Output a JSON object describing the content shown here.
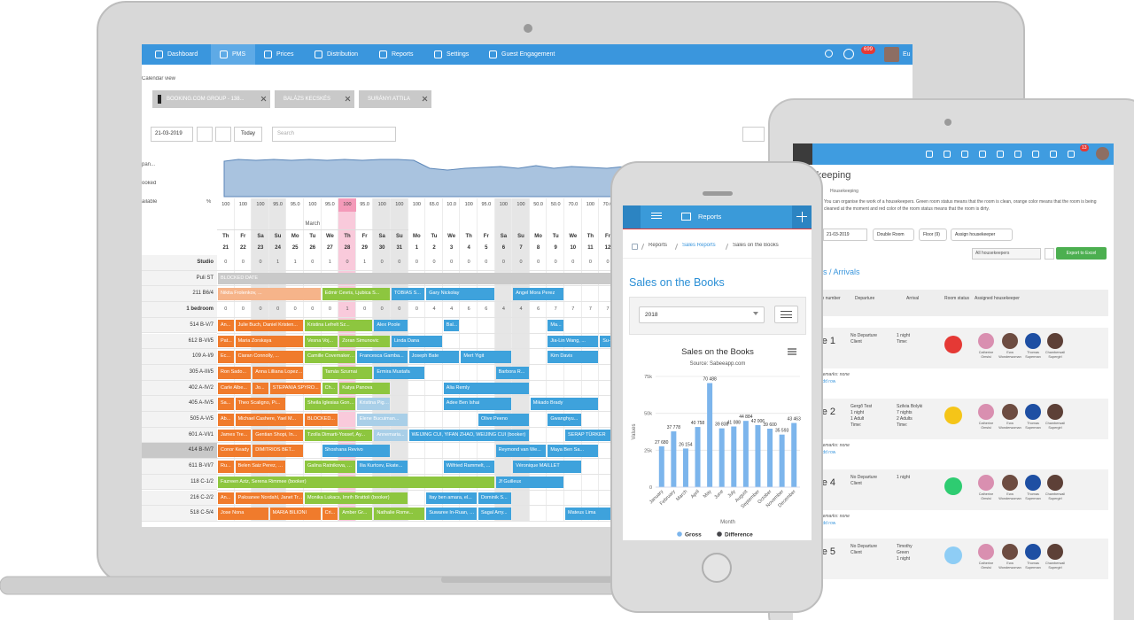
{
  "laptop": {
    "nav": [
      "Dashboard",
      "PMS",
      "Prices",
      "Distribution",
      "Reports",
      "Settings",
      "Guest Engagement"
    ],
    "badge": "699",
    "user": "Eu",
    "breadcrumb": "Calendar view",
    "tabs": [
      "BOOKING.COM GROUP - 138...",
      "BALÁZS KECSKÉS",
      "SURÁNYI ATTILA"
    ],
    "date": "21-03-2019",
    "today": "Today",
    "search": "Search",
    "side_labels": [
      "pan...",
      "ooked",
      "ailable"
    ],
    "percent": "%",
    "month": "March",
    "highlight_day": 28,
    "days": [
      {
        "d": "Th",
        "n": 21
      },
      {
        "d": "Fr",
        "n": 22
      },
      {
        "d": "Sa",
        "n": 23
      },
      {
        "d": "Su",
        "n": 24
      },
      {
        "d": "Mo",
        "n": 25
      },
      {
        "d": "Tu",
        "n": 26
      },
      {
        "d": "We",
        "n": 27
      },
      {
        "d": "Th",
        "n": 28
      },
      {
        "d": "Fr",
        "n": 29
      },
      {
        "d": "Sa",
        "n": 30
      },
      {
        "d": "Su",
        "n": 31
      },
      {
        "d": "Mo",
        "n": 1
      },
      {
        "d": "Tu",
        "n": 2
      },
      {
        "d": "We",
        "n": 3
      },
      {
        "d": "Th",
        "n": 4
      },
      {
        "d": "Fr",
        "n": 5
      },
      {
        "d": "Sa",
        "n": 6
      },
      {
        "d": "Su",
        "n": 7
      },
      {
        "d": "Mo",
        "n": 8
      },
      {
        "d": "Tu",
        "n": 9
      },
      {
        "d": "We",
        "n": 10
      },
      {
        "d": "Th",
        "n": 11
      },
      {
        "d": "Fr",
        "n": 12
      }
    ],
    "occupancy": [
      "100",
      "100",
      "100",
      "95.0",
      "95.0",
      "100",
      "95.0",
      "100",
      "95.0",
      "100",
      "100",
      "100",
      "65.0",
      "10.0",
      "100",
      "95.0",
      "100",
      "100",
      "50.0",
      "50.0",
      "70.0",
      "100",
      "70.0"
    ],
    "rows": [
      {
        "name": "Studio",
        "counts": [
          0,
          0,
          0,
          1,
          1,
          0,
          1,
          0,
          1,
          0,
          0,
          0,
          0,
          0,
          0,
          0,
          0,
          0,
          0,
          0,
          0,
          0,
          0
        ]
      },
      {
        "name": "Puli ST",
        "bookings": [
          {
            "label": "BLOCKED DATE",
            "from": 21,
            "to": 12,
            "color": "#c9c9c9"
          }
        ]
      },
      {
        "name": "211 B6/4",
        "bookings": [
          {
            "label": "Nikita Frolenkov, ...",
            "from": 21,
            "to": 26,
            "color": "#f6b48a"
          },
          {
            "label": "Edmir Cevris, Ljubica S...",
            "from": 27,
            "to": 30,
            "color": "#8dc63f"
          },
          {
            "label": "TOBIAS S...",
            "from": 31,
            "to": 1,
            "color": "#3ea2dc"
          },
          {
            "label": "Gary Nickolay",
            "from": 2,
            "to": 5,
            "color": "#3ea2dc"
          },
          {
            "label": "Angel Mora Perez",
            "from": 7,
            "to": 9,
            "color": "#3ea2dc"
          }
        ]
      },
      {
        "name": "1 bedroom",
        "counts": [
          0,
          0,
          0,
          0,
          0,
          0,
          0,
          1,
          0,
          0,
          0,
          0,
          4,
          4,
          6,
          6,
          4,
          4,
          6,
          7,
          7,
          7,
          7
        ]
      },
      {
        "name": "514 B-V/7",
        "bookings": [
          {
            "label": "An...",
            "from": 21,
            "to": 21,
            "color": "#f07b2c"
          },
          {
            "label": "Julie Buch, Daniel Kristen...",
            "from": 22,
            "to": 25,
            "color": "#f07b2c"
          },
          {
            "label": "Kristina Lefrelt Sz...",
            "from": 26,
            "to": 29,
            "color": "#8dc63f"
          },
          {
            "label": "Alex Poole",
            "from": 30,
            "to": 31,
            "color": "#3ea2dc"
          },
          {
            "label": "Bal...",
            "from": 3,
            "to": 3,
            "color": "#3ea2dc"
          },
          {
            "label": "Ma...",
            "from": 9,
            "to": 9,
            "color": "#3ea2dc"
          }
        ]
      },
      {
        "name": "612 B-VI/5",
        "bookings": [
          {
            "label": "Pat...",
            "from": 21,
            "to": 21,
            "color": "#f07b2c"
          },
          {
            "label": "Maria Zorskaya",
            "from": 22,
            "to": 25,
            "color": "#f07b2c"
          },
          {
            "label": "Vesna Voj...",
            "from": 26,
            "to": 27,
            "color": "#8dc63f"
          },
          {
            "label": "Zoran Simunovic",
            "from": 28,
            "to": 30,
            "color": "#8dc63f"
          },
          {
            "label": "Linda Dana",
            "from": 31,
            "to": 2,
            "color": "#3ea2dc"
          },
          {
            "label": "Jia-Lin Wang, ...",
            "from": 9,
            "to": 11,
            "color": "#3ea2dc"
          },
          {
            "label": "Su-Ying Lo",
            "from": 12,
            "to": 12,
            "color": "#3ea2dc"
          }
        ]
      },
      {
        "name": "109 A-I/9",
        "bookings": [
          {
            "label": "Ec...",
            "from": 21,
            "to": 21,
            "color": "#f07b2c"
          },
          {
            "label": "Ciaran Connolly, ...",
            "from": 22,
            "to": 25,
            "color": "#f07b2c"
          },
          {
            "label": "Camille Covemaker, Ka...",
            "from": 26,
            "to": 28,
            "color": "#8dc63f"
          },
          {
            "label": "Francesca Gamba...",
            "from": 29,
            "to": 31,
            "color": "#3ea2dc"
          },
          {
            "label": "Joseph Bate",
            "from": 1,
            "to": 3,
            "color": "#3ea2dc"
          },
          {
            "label": "Mert Yigit",
            "from": 4,
            "to": 6,
            "color": "#3ea2dc"
          },
          {
            "label": "Kim Davis",
            "from": 9,
            "to": 11,
            "color": "#3ea2dc"
          }
        ]
      },
      {
        "name": "305 A-III/5",
        "bookings": [
          {
            "label": "Ron Sado...",
            "from": 21,
            "to": 22,
            "color": "#f07b2c"
          },
          {
            "label": "Anna Lilliana Lopez, Ikes...",
            "from": 23,
            "to": 25,
            "color": "#f07b2c"
          },
          {
            "label": "Tamás Szurnai",
            "from": 27,
            "to": 29,
            "color": "#8dc63f"
          },
          {
            "label": "Ermira Mustafa",
            "from": 30,
            "to": 1,
            "color": "#3ea2dc"
          },
          {
            "label": "Barbora R...",
            "from": 6,
            "to": 7,
            "color": "#3ea2dc"
          }
        ]
      },
      {
        "name": "402 A-IV/2",
        "bookings": [
          {
            "label": "Carle Albe...",
            "from": 21,
            "to": 22,
            "color": "#f07b2c"
          },
          {
            "label": "Jo...",
            "from": 23,
            "to": 23,
            "color": "#f07b2c"
          },
          {
            "label": "STEPANIA SPYRO...",
            "from": 24,
            "to": 26,
            "color": "#f07b2c"
          },
          {
            "label": "Ch...",
            "from": 27,
            "to": 27,
            "color": "#8dc63f"
          },
          {
            "label": "Katya Panova",
            "from": 28,
            "to": 30,
            "color": "#8dc63f"
          },
          {
            "label": "Alia Remly",
            "from": 3,
            "to": 7,
            "color": "#3ea2dc"
          }
        ]
      },
      {
        "name": "405 A-IV/5",
        "bookings": [
          {
            "label": "Sa...",
            "from": 21,
            "to": 21,
            "color": "#f07b2c"
          },
          {
            "label": "Theo Scaligno, Pi...",
            "from": 22,
            "to": 24,
            "color": "#f07b2c"
          },
          {
            "label": "Sheila Iglesias González",
            "from": 26,
            "to": 28,
            "color": "#8dc63f"
          },
          {
            "label": "Kristina Pigsborg...",
            "from": 29,
            "to": 30,
            "color": "#a9cfe8"
          },
          {
            "label": "Adee Ben Ishai",
            "from": 3,
            "to": 6,
            "color": "#3ea2dc"
          },
          {
            "label": "Mikado Brady",
            "from": 8,
            "to": 11,
            "color": "#3ea2dc"
          }
        ]
      },
      {
        "name": "505 A-V/5",
        "bookings": [
          {
            "label": "Ab...",
            "from": 21,
            "to": 21,
            "color": "#f07b2c"
          },
          {
            "label": "Michael Cashere, Yael M...",
            "from": 22,
            "to": 25,
            "color": "#f07b2c"
          },
          {
            "label": "BLOCKED...",
            "from": 26,
            "to": 27,
            "color": "#f07b2c"
          },
          {
            "label": "Elene Bucuiman...",
            "from": 29,
            "to": 31,
            "color": "#a9cfe8"
          },
          {
            "label": "Olive Peeno",
            "from": 5,
            "to": 7,
            "color": "#3ea2dc"
          },
          {
            "label": "Gwanghyu...",
            "from": 9,
            "to": 10,
            "color": "#3ea2dc"
          }
        ]
      },
      {
        "name": "601 A-VI/1",
        "bookings": [
          {
            "label": "James Tre...",
            "from": 21,
            "to": 22,
            "color": "#f07b2c"
          },
          {
            "label": "Gentian Shopi, In...",
            "from": 23,
            "to": 25,
            "color": "#f07b2c"
          },
          {
            "label": "Tzolla Dimarti-Yossef, Ay...",
            "from": 26,
            "to": 29,
            "color": "#8dc63f"
          },
          {
            "label": "Annemaria...",
            "from": 30,
            "to": 31,
            "color": "#a9cfe8"
          },
          {
            "label": "WEIJING CUI, YIFAN ZHAO, WEIJING CUI (booker)",
            "from": 1,
            "to": 7,
            "color": "#3ea2dc"
          },
          {
            "label": "SERAP TÜRKER",
            "from": 10,
            "to": 12,
            "color": "#3ea2dc"
          }
        ]
      },
      {
        "name": "414 B-IV/7",
        "bookings": [
          {
            "label": "Conor Keady",
            "from": 21,
            "to": 22,
            "color": "#f07b2c"
          },
          {
            "label": "DIMITRIOS BET...",
            "from": 23,
            "to": 25,
            "color": "#f07b2c"
          },
          {
            "label": "Shoshana Revivo",
            "from": 27,
            "to": 30,
            "color": "#3ea2dc"
          },
          {
            "label": "Reymond van We...",
            "from": 6,
            "to": 8,
            "color": "#3ea2dc"
          },
          {
            "label": "Maya Ben Sa...",
            "from": 9,
            "to": 11,
            "color": "#3ea2dc"
          }
        ]
      },
      {
        "name": "611 B-VI/7",
        "bookings": [
          {
            "label": "Ru...",
            "from": 21,
            "to": 21,
            "color": "#f07b2c"
          },
          {
            "label": "Belen Saiz Perez, G...",
            "from": 22,
            "to": 24,
            "color": "#f07b2c"
          },
          {
            "label": "Galina Ratnikova, Alexey...",
            "from": 26,
            "to": 28,
            "color": "#8dc63f"
          },
          {
            "label": "Ilia Kurtcev, Ekate...",
            "from": 29,
            "to": 31,
            "color": "#3ea2dc"
          },
          {
            "label": "Wilfried Rammelt, ...",
            "from": 3,
            "to": 5,
            "color": "#3ea2dc"
          },
          {
            "label": "Véronique MAILLET",
            "from": 7,
            "to": 10,
            "color": "#3ea2dc"
          }
        ]
      },
      {
        "name": "118 C-1/2",
        "bookings": [
          {
            "label": "Fazreen Aziz, Serena Rimmee (booker)",
            "from": 21,
            "to": 5,
            "color": "#8dc63f"
          },
          {
            "label": "Jf Guilleux",
            "from": 6,
            "to": 9,
            "color": "#3ea2dc"
          }
        ]
      },
      {
        "name": "216 C-2/2",
        "bookings": [
          {
            "label": "An...",
            "from": 21,
            "to": 21,
            "color": "#f07b2c"
          },
          {
            "label": "Paksanee Nordahl, Janet Tr...",
            "from": 22,
            "to": 25,
            "color": "#f07b2c"
          },
          {
            "label": "Monika Lukacs, Imrih Brattoli (booker)",
            "from": 26,
            "to": 31,
            "color": "#8dc63f"
          },
          {
            "label": "Itay ben amara, el...",
            "from": 2,
            "to": 4,
            "color": "#3ea2dc"
          },
          {
            "label": "Dominik S...",
            "from": 5,
            "to": 6,
            "color": "#3ea2dc"
          }
        ]
      },
      {
        "name": "518 C-5/4",
        "bookings": [
          {
            "label": "Jose Nona",
            "from": 21,
            "to": 23,
            "color": "#f07b2c"
          },
          {
            "label": "MARIA BILIONI",
            "from": 24,
            "to": 26,
            "color": "#f07b2c"
          },
          {
            "label": "Cri...",
            "from": 27,
            "to": 27,
            "color": "#f07b2c"
          },
          {
            "label": "Amber Gr...",
            "from": 28,
            "to": 29,
            "color": "#8dc63f"
          },
          {
            "label": "Nathalie Rome...",
            "from": 30,
            "to": 1,
            "color": "#8dc63f"
          },
          {
            "label": "Suwaree In-Ruan, Stefan Kr...",
            "from": 2,
            "to": 4,
            "color": "#3ea2dc"
          },
          {
            "label": "Sagal Arry...",
            "from": 5,
            "to": 6,
            "color": "#3ea2dc"
          },
          {
            "label": "Mateus Lima",
            "from": 10,
            "to": 12,
            "color": "#3ea2dc"
          }
        ]
      }
    ]
  },
  "tablet": {
    "title": "Housekeeping",
    "breadcrumb": "Housekeeping",
    "badge": "13",
    "description": "You can organise the work of a housekeepers. Green room status means that the room is clean, orange color means that the room is being cleaned at the moment and red color of the room status means that the room is dirty.",
    "date": "21-03-2019",
    "filters": [
      "Double Room",
      "Floor (9)",
      "Assign housekeeper"
    ],
    "housekeeper_filter": "All housekeepers",
    "export": "Export to Excel",
    "section": "Departures / Arrivals",
    "columns": [
      "Room number",
      "Departure",
      "Arrival",
      "Room status",
      "Assigned housekeeper"
    ],
    "rooms": [
      {
        "room": "Double 1",
        "departure": [
          "No Departure",
          "Client"
        ],
        "arrival": [
          "1 night",
          "Time:"
        ],
        "status": "#e53935",
        "remarks": "Remarks: none",
        "add": "Add row"
      },
      {
        "room": "Double 2",
        "departure": [
          "Gergő Test",
          "1 night",
          "1 Adult",
          "Time:"
        ],
        "arrival": [
          "Szilvia Bolyki",
          "7 nights",
          "2 Adults",
          "Time:"
        ],
        "status": "#f5c518",
        "remarks": "Remarks: none",
        "add": "Add row"
      },
      {
        "room": "Double 4",
        "departure": [
          "No Departure",
          "Client"
        ],
        "arrival": [
          "1 night"
        ],
        "status": "#2ecc71",
        "remarks": "Remarks: none",
        "add": "Add row"
      },
      {
        "room": "Double 5",
        "departure": [
          "No Departure",
          "Client"
        ],
        "arrival": [
          "Timothy",
          "Green",
          "1 night"
        ],
        "status": "#8ecdf5"
      }
    ],
    "housekeepers": [
      "Catherine Omsisi",
      "Ewa Wonderwoman",
      "Thomas Superman",
      "Chamberwall Supergirl"
    ]
  },
  "phone": {
    "header": "Reports",
    "breadcrumb": [
      "Reports",
      "Sales Reports",
      "Sales on the Books"
    ],
    "heading": "Sales on the Books",
    "year": "2018"
  },
  "chart_data": {
    "type": "bar",
    "title": "Sales on the Books",
    "subtitle": "Source: Sabeeapp.com",
    "x_label": "Month",
    "y_label": "Values",
    "categories": [
      "January",
      "February",
      "March",
      "April",
      "May",
      "June",
      "July",
      "August",
      "September",
      "October",
      "November",
      "December"
    ],
    "series": [
      {
        "name": "Gross",
        "color": "#7cb5ec",
        "values": [
          27680,
          37778,
          26154,
          40758,
          70488,
          39838,
          41088,
          44884,
          42006,
          39600,
          35593,
          43463
        ],
        "value_labels": [
          "27 680",
          "37 778",
          "26 154",
          "40 758",
          "70 488",
          "39 838",
          "41 088",
          "44 884",
          "42 006",
          "39 600",
          "35 593",
          "43 463"
        ]
      },
      {
        "name": "Difference",
        "color": "#434348",
        "values": [
          null,
          null,
          null,
          null,
          null,
          null,
          null,
          null,
          null,
          null,
          null,
          null
        ]
      }
    ],
    "ylim": [
      0,
      75000
    ],
    "yticks": [
      0,
      {
        "value": 25000,
        "label": "25k"
      },
      {
        "value": 50000,
        "label": "50k"
      },
      {
        "value": 75000,
        "label": "75k"
      }
    ],
    "grid": true
  }
}
